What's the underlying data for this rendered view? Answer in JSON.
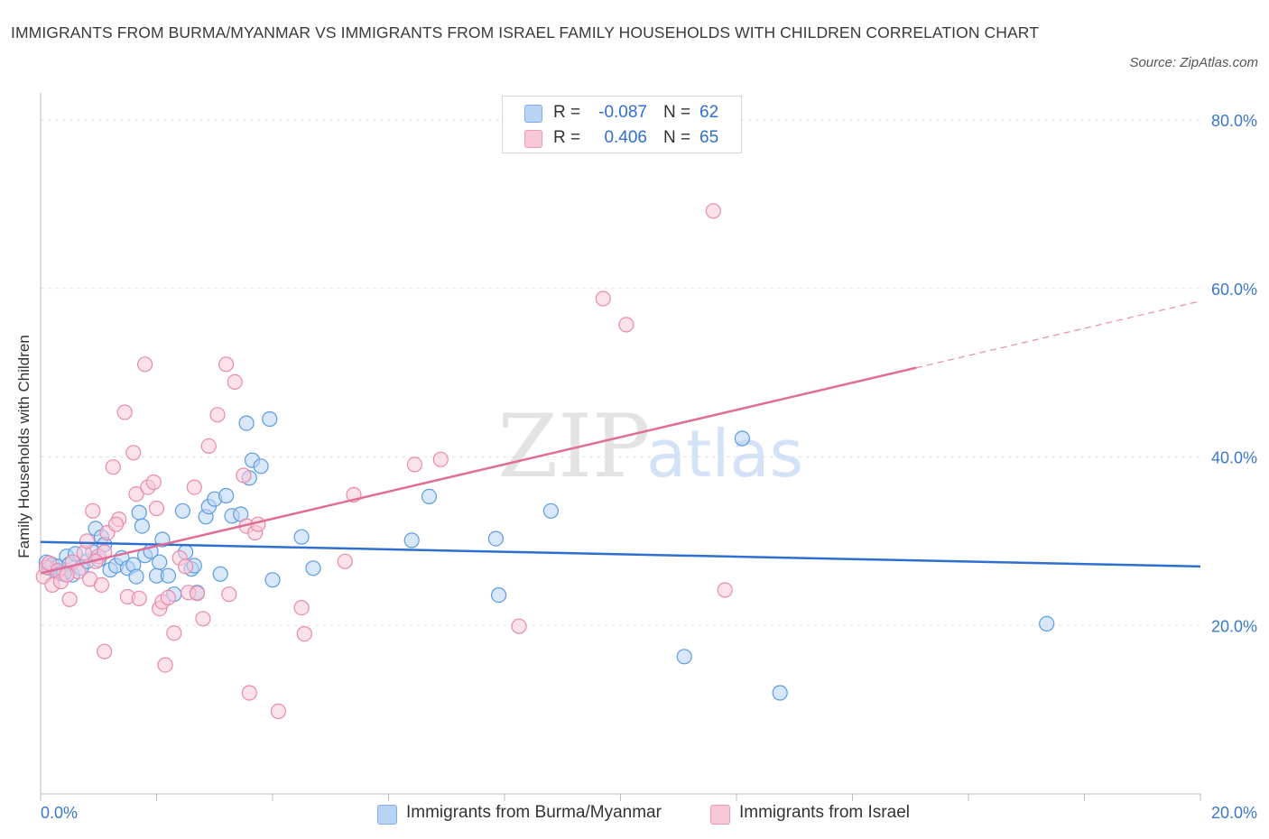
{
  "title": "IMMIGRANTS FROM BURMA/MYANMAR VS IMMIGRANTS FROM ISRAEL FAMILY HOUSEHOLDS WITH CHILDREN CORRELATION CHART",
  "source": "Source: ZipAtlas.com",
  "watermark": {
    "zip": "ZIP",
    "atlas": "atlas"
  },
  "stats": [
    {
      "r_label": "R =",
      "r_value": "-0.087",
      "n_label": "N =",
      "n_value": "62",
      "color": "#7faee8",
      "fill": "#b9d3f5"
    },
    {
      "r_label": "R =",
      "r_value": "0.406",
      "n_label": "N =",
      "n_value": "65",
      "color": "#ec9ab4",
      "fill": "#f8c8d8"
    }
  ],
  "legend": [
    {
      "label": "Immigrants from Burma/Myanmar"
    },
    {
      "label": "Immigrants from Israel"
    }
  ],
  "chart_data": {
    "type": "scatter",
    "title": "IMMIGRANTS FROM BURMA/MYANMAR VS IMMIGRANTS FROM ISRAEL FAMILY HOUSEHOLDS WITH CHILDREN CORRELATION CHART",
    "xlabel": "",
    "ylabel": "Family Households with Children",
    "xlim": [
      0,
      20
    ],
    "ylim": [
      0,
      80
    ],
    "x_tick_labels": [
      "0.0%",
      "20.0%"
    ],
    "y_ticks": [
      20,
      40,
      60,
      80
    ],
    "y_tick_labels": [
      "20.0%",
      "40.0%",
      "60.0%",
      "80.0%"
    ],
    "grid": true,
    "legend_position": "bottom",
    "series": [
      {
        "name": "Immigrants from Burma/Myanmar",
        "color": "#5b9be0",
        "fill": "#b9d3f5",
        "points": [
          [
            0.1,
            27.5
          ],
          [
            0.15,
            26.8
          ],
          [
            0.2,
            27.2
          ],
          [
            0.25,
            26.5
          ],
          [
            0.3,
            27.0
          ],
          [
            0.35,
            26.2
          ],
          [
            0.45,
            28.2
          ],
          [
            0.5,
            27.3
          ],
          [
            0.55,
            26.0
          ],
          [
            0.6,
            28.5
          ],
          [
            0.7,
            26.8
          ],
          [
            0.8,
            27.6
          ],
          [
            0.9,
            28.7
          ],
          [
            0.95,
            31.5
          ],
          [
            1.0,
            27.8
          ],
          [
            1.05,
            30.5
          ],
          [
            1.1,
            29.6
          ],
          [
            1.2,
            26.6
          ],
          [
            1.3,
            27.1
          ],
          [
            1.4,
            28.0
          ],
          [
            1.5,
            26.8
          ],
          [
            1.6,
            27.2
          ],
          [
            1.65,
            25.8
          ],
          [
            1.7,
            33.4
          ],
          [
            1.75,
            31.8
          ],
          [
            1.8,
            28.3
          ],
          [
            1.9,
            28.8
          ],
          [
            2.0,
            25.9
          ],
          [
            2.05,
            27.5
          ],
          [
            2.1,
            30.2
          ],
          [
            2.2,
            25.9
          ],
          [
            2.3,
            23.7
          ],
          [
            2.45,
            33.6
          ],
          [
            2.5,
            28.7
          ],
          [
            2.6,
            26.7
          ],
          [
            2.65,
            27.1
          ],
          [
            2.7,
            23.9
          ],
          [
            2.85,
            32.9
          ],
          [
            2.9,
            34.1
          ],
          [
            3.0,
            35.0
          ],
          [
            3.1,
            26.1
          ],
          [
            3.2,
            35.4
          ],
          [
            3.3,
            33.0
          ],
          [
            3.45,
            33.2
          ],
          [
            3.55,
            44.0
          ],
          [
            3.6,
            37.5
          ],
          [
            3.65,
            39.6
          ],
          [
            3.8,
            38.9
          ],
          [
            3.95,
            44.5
          ],
          [
            4.0,
            25.4
          ],
          [
            4.5,
            30.5
          ],
          [
            4.7,
            26.8
          ],
          [
            6.4,
            30.1
          ],
          [
            6.7,
            35.3
          ],
          [
            7.85,
            30.3
          ],
          [
            7.9,
            23.6
          ],
          [
            8.8,
            33.6
          ],
          [
            11.1,
            16.3
          ],
          [
            12.1,
            42.2
          ],
          [
            12.75,
            12.0
          ],
          [
            17.35,
            20.2
          ],
          [
            0.4,
            26.1
          ]
        ]
      },
      {
        "name": "Immigrants from Israel",
        "color": "#e98aab",
        "fill": "#f8c8d8",
        "points": [
          [
            0.05,
            25.8
          ],
          [
            0.1,
            26.9
          ],
          [
            0.15,
            27.4
          ],
          [
            0.2,
            24.8
          ],
          [
            0.3,
            26.5
          ],
          [
            0.35,
            25.2
          ],
          [
            0.5,
            23.1
          ],
          [
            0.55,
            27.5
          ],
          [
            0.65,
            26.4
          ],
          [
            0.75,
            28.6
          ],
          [
            0.8,
            30.0
          ],
          [
            0.85,
            25.5
          ],
          [
            0.9,
            33.6
          ],
          [
            1.0,
            28.2
          ],
          [
            1.05,
            24.8
          ],
          [
            1.1,
            28.7
          ],
          [
            1.15,
            31.0
          ],
          [
            1.25,
            38.8
          ],
          [
            1.35,
            32.6
          ],
          [
            1.45,
            45.3
          ],
          [
            1.5,
            23.4
          ],
          [
            1.6,
            40.5
          ],
          [
            1.65,
            35.6
          ],
          [
            1.7,
            23.2
          ],
          [
            1.8,
            51.0
          ],
          [
            1.85,
            36.4
          ],
          [
            1.95,
            37.0
          ],
          [
            2.0,
            33.9
          ],
          [
            2.05,
            22.0
          ],
          [
            2.1,
            22.8
          ],
          [
            2.2,
            23.3
          ],
          [
            2.3,
            19.1
          ],
          [
            2.4,
            28.0
          ],
          [
            2.5,
            27.0
          ],
          [
            2.55,
            23.9
          ],
          [
            2.65,
            36.4
          ],
          [
            2.7,
            23.8
          ],
          [
            2.8,
            20.8
          ],
          [
            2.9,
            41.3
          ],
          [
            3.05,
            45.0
          ],
          [
            3.2,
            51.0
          ],
          [
            3.25,
            23.7
          ],
          [
            3.35,
            48.9
          ],
          [
            3.5,
            37.8
          ],
          [
            3.55,
            31.8
          ],
          [
            3.6,
            12.0
          ],
          [
            3.7,
            31.0
          ],
          [
            3.75,
            32.0
          ],
          [
            4.1,
            9.8
          ],
          [
            4.5,
            22.1
          ],
          [
            4.55,
            19.0
          ],
          [
            5.25,
            27.6
          ],
          [
            5.4,
            35.5
          ],
          [
            6.45,
            39.1
          ],
          [
            6.9,
            39.7
          ],
          [
            8.25,
            19.9
          ],
          [
            9.7,
            58.8
          ],
          [
            10.1,
            55.7
          ],
          [
            11.6,
            69.2
          ],
          [
            11.8,
            24.2
          ],
          [
            1.1,
            16.9
          ],
          [
            2.15,
            15.3
          ],
          [
            0.45,
            26.0
          ],
          [
            1.3,
            32.0
          ],
          [
            0.95,
            27.6
          ]
        ]
      }
    ],
    "trend_lines": [
      {
        "series": "Immigrants from Burma/Myanmar",
        "x": [
          0,
          20
        ],
        "y": [
          29.9,
          27.0
        ]
      },
      {
        "series": "Immigrants from Israel",
        "x": [
          0,
          20
        ],
        "y": [
          26.2,
          58.5
        ],
        "solid_until_x": 15.1
      }
    ]
  }
}
